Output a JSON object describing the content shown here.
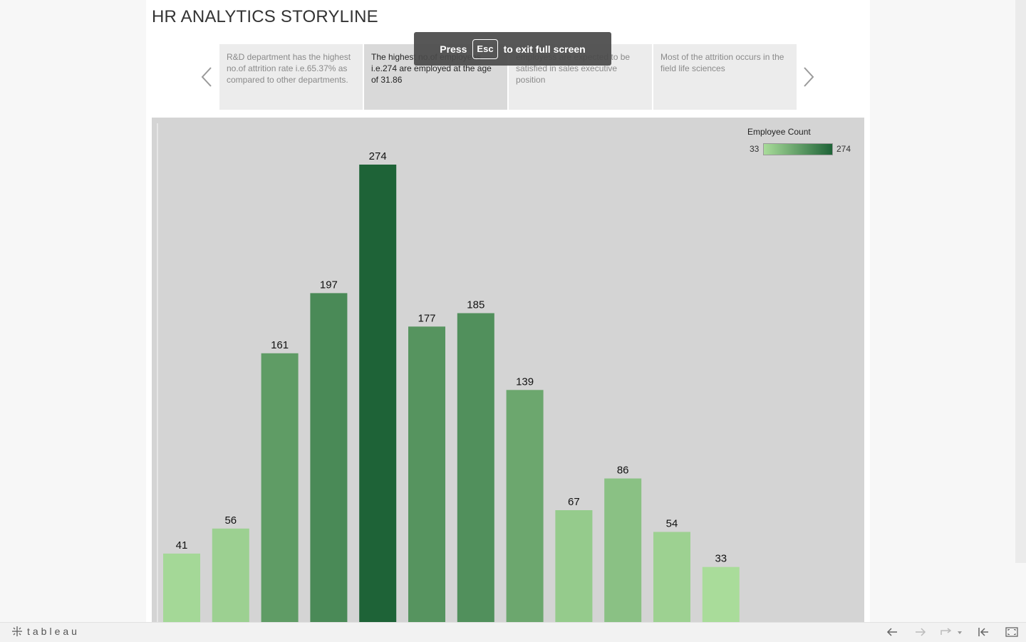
{
  "title": "HR ANALYTICS STORYLINE",
  "story_points": [
    {
      "text": "R&D department has the highest no.of attrition rate i.e.65.37% as compared to other departments.",
      "active": false
    },
    {
      "text": "The highest no.of employees i.e.274 are employed at the age of 31.86",
      "active": true
    },
    {
      "text": "employess are expected to be satisfied in sales executive position",
      "active": false
    },
    {
      "text": "Most of the attrition  occurs in the field life sciences",
      "active": false
    }
  ],
  "toast": {
    "press": "Press",
    "key": "Esc",
    "rest": "to exit full screen"
  },
  "legend": {
    "title": "Employee Count",
    "min": "33",
    "max": "274",
    "color_low": "#a9dc9a",
    "color_high": "#1e6337"
  },
  "chart_data": {
    "type": "bar",
    "title": "",
    "values": [
      41,
      56,
      161,
      197,
      274,
      177,
      185,
      139,
      67,
      86,
      54,
      33
    ],
    "value_labels": [
      "41",
      "56",
      "161",
      "197",
      "274",
      "177",
      "185",
      "139",
      "67",
      "86",
      "54",
      "33"
    ],
    "color_scale": {
      "min": 33,
      "max": 274,
      "low": "#a9dc9a",
      "high": "#1e6337"
    },
    "grid": false
  },
  "footer": {
    "logo_text": "tableau"
  }
}
